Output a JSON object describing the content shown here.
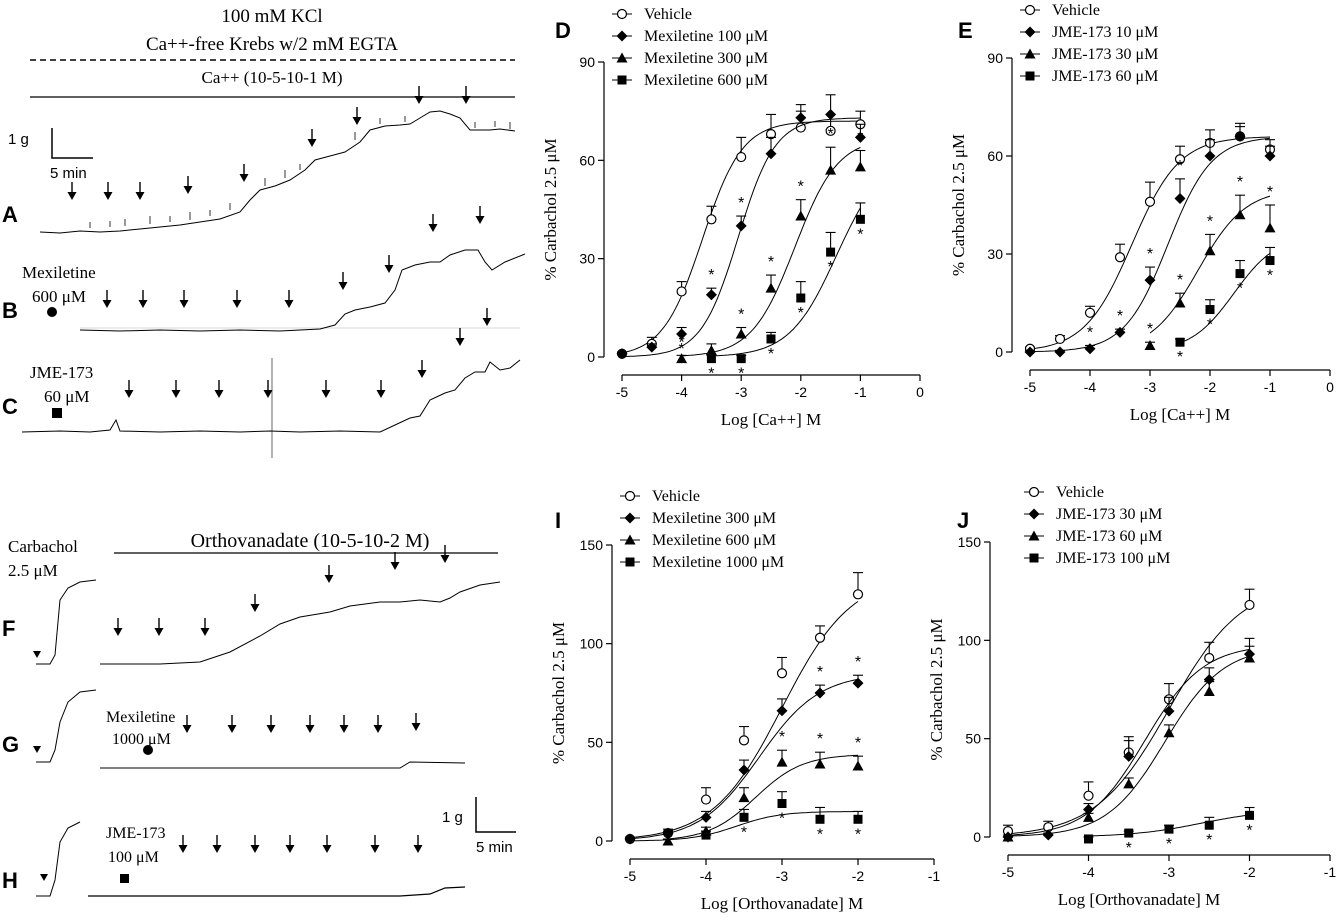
{
  "colors": {
    "ink": "#000000",
    "background": "#ffffff"
  },
  "traces": {
    "top_title_line1": "100 mM KCl",
    "top_title_line2": "Ca++-free Krebs w/2 mM EGTA",
    "top_range_label": "Ca++ (10-5-10-1 M)",
    "panel_labels": [
      "A",
      "B",
      "C",
      "F",
      "G",
      "H"
    ],
    "mexiletine_B": "Mexiletine",
    "mexiletine_B_dose": "600 μM",
    "jme_C": "JME-173",
    "jme_C_dose": "60 μM",
    "scale_g": "1 g",
    "scale_min": "5 min",
    "carbachol": "Carbachol",
    "carbachol_dose": "2.5 μM",
    "ortho_range_label": "Orthovanadate (10-5-10-2 M)",
    "mexiletine_G": "Mexiletine",
    "mexiletine_G_dose": "1000 μM",
    "jme_H": "JME-173",
    "jme_H_dose": "100 μM",
    "scale2_g": "1 g",
    "scale2_min": "5 min"
  },
  "chart_data": [
    {
      "id": "D",
      "type": "scatter",
      "panel_label": "D",
      "xlabel": "Log [Ca++] M",
      "ylabel": "% Carbachol 2.5 μM",
      "xlim": [
        -5,
        0
      ],
      "ylim": [
        0,
        90
      ],
      "xticks": [
        -5,
        -4,
        -3,
        -2,
        -1,
        0
      ],
      "yticks": [
        0,
        30,
        60,
        90
      ],
      "xtick_labels": [
        "-5",
        "-4",
        "-3",
        "-2",
        "-1",
        "0"
      ],
      "ytick_labels": [
        "0",
        "30",
        "60",
        "90"
      ],
      "legend": "top-left",
      "series": [
        {
          "name": "Vehicle",
          "marker": "circle-open",
          "x": [
            -5,
            -4.5,
            -4,
            -3.5,
            -3,
            -2.5,
            -2,
            -1.5,
            -1
          ],
          "y": [
            1,
            4,
            20,
            42,
            61,
            68,
            70,
            69,
            71
          ],
          "err": [
            0.5,
            2,
            3,
            4,
            6,
            6,
            5,
            5,
            4
          ],
          "fit": {
            "bottom": 0,
            "top": 72,
            "ec50": -3.65,
            "hill": 1.3,
            "from": -5,
            "to": -1
          },
          "stars": []
        },
        {
          "name": "Mexiletine 100 μM",
          "marker": "diamond",
          "x": [
            -5,
            -4.5,
            -4,
            -3.5,
            -3,
            -2.5,
            -2,
            -1.5,
            -1
          ],
          "y": [
            1,
            3,
            7,
            19,
            40,
            62,
            73,
            74,
            67
          ],
          "err": [
            0.5,
            1,
            2,
            2,
            3,
            5,
            4,
            6,
            4
          ],
          "fit": {
            "bottom": 0,
            "top": 73,
            "ec50": -3.05,
            "hill": 1.4,
            "from": -5,
            "to": -1
          },
          "stars": [
            {
              "x": -4,
              "side": "below"
            },
            {
              "x": -3.5,
              "side": "above"
            },
            {
              "x": -3,
              "side": "above"
            }
          ]
        },
        {
          "name": "Mexiletine 300 μM",
          "marker": "triangle",
          "x": [
            -4,
            -3.5,
            -3,
            -2.5,
            -2,
            -1.5,
            -1
          ],
          "y": [
            -0.5,
            2,
            7,
            21,
            43,
            57,
            58
          ],
          "err": [
            1,
            2,
            2,
            4,
            5,
            7,
            5
          ],
          "fit": {
            "bottom": 0,
            "top": 67,
            "ec50": -2.1,
            "hill": 1.2,
            "from": -4,
            "to": -1
          },
          "stars": [
            {
              "x": -4,
              "side": "above"
            },
            {
              "x": -3,
              "side": "above"
            },
            {
              "x": -2.5,
              "side": "above"
            },
            {
              "x": -2,
              "side": "above"
            },
            {
              "x": -1.5,
              "side": "above"
            },
            {
              "x": -1,
              "side": "above"
            }
          ]
        },
        {
          "name": "Mexiletine 600 μM",
          "marker": "square",
          "x": [
            -3.5,
            -3,
            -2.5,
            -2,
            -1.5,
            -1
          ],
          "y": [
            -0.5,
            -0.5,
            5.5,
            18,
            32,
            42
          ],
          "err": [
            1,
            1,
            2,
            5,
            6,
            5
          ],
          "fit": {
            "bottom": 0,
            "top": 62,
            "ec50": -1.4,
            "hill": 1.1,
            "from": -3.5,
            "to": -1
          },
          "stars": [
            {
              "x": -3.5,
              "side": "below"
            },
            {
              "x": -3,
              "side": "below"
            },
            {
              "x": -2.5,
              "side": "below"
            },
            {
              "x": -2,
              "side": "below"
            },
            {
              "x": -1.5,
              "side": "below"
            },
            {
              "x": -1,
              "side": "below"
            }
          ]
        }
      ]
    },
    {
      "id": "E",
      "type": "scatter",
      "panel_label": "E",
      "xlabel": "Log [Ca++] M",
      "ylabel": "% Carbachol 2.5 μM",
      "xlim": [
        -5,
        0
      ],
      "ylim": [
        0,
        90
      ],
      "xticks": [
        -5,
        -4,
        -3,
        -2,
        -1,
        0
      ],
      "yticks": [
        0,
        30,
        60,
        90
      ],
      "xtick_labels": [
        "-5",
        "-4",
        "-3",
        "-2",
        "-1",
        "0"
      ],
      "ytick_labels": [
        "0",
        "30",
        "60",
        "90"
      ],
      "legend": "top-left",
      "series": [
        {
          "name": "Vehicle",
          "marker": "circle-open",
          "x": [
            -5,
            -4.5,
            -4,
            -3.5,
            -3,
            -2.5,
            -2,
            -1.5,
            -1
          ],
          "y": [
            1,
            4,
            12,
            29,
            46,
            59,
            64,
            66,
            62
          ],
          "err": [
            0.5,
            1,
            2,
            4,
            6,
            4,
            4,
            4,
            3
          ],
          "fit": {
            "bottom": 0,
            "top": 66,
            "ec50": -3.3,
            "hill": 1.1,
            "from": -5,
            "to": -1
          },
          "stars": []
        },
        {
          "name": "JME-173 10 μM",
          "marker": "diamond",
          "x": [
            -5,
            -4.5,
            -4,
            -3.5,
            -3,
            -2.5,
            -2,
            -1.5,
            -1
          ],
          "y": [
            0,
            0,
            1,
            6,
            22,
            47,
            60,
            66,
            60
          ],
          "err": [
            0.5,
            0.5,
            1,
            1,
            4,
            6,
            5,
            3,
            3
          ],
          "fit": {
            "bottom": 0,
            "top": 66,
            "ec50": -2.7,
            "hill": 1.2,
            "from": -5,
            "to": -1
          },
          "stars": [
            {
              "x": -4,
              "side": "above"
            },
            {
              "x": -3.5,
              "side": "above"
            },
            {
              "x": -3,
              "side": "above"
            },
            {
              "x": -2.5,
              "side": "above"
            }
          ]
        },
        {
          "name": "JME-173 30 μM",
          "marker": "triangle",
          "x": [
            -3,
            -2.5,
            -2,
            -1.5,
            -1
          ],
          "y": [
            2,
            15,
            31,
            42,
            38
          ],
          "err": [
            1,
            3,
            5,
            6,
            7
          ],
          "fit": {
            "bottom": 0,
            "top": 50,
            "ec50": -2.2,
            "hill": 1.1,
            "from": -3,
            "to": -1
          },
          "stars": [
            {
              "x": -3,
              "side": "above"
            },
            {
              "x": -2.5,
              "side": "above"
            },
            {
              "x": -2,
              "side": "above"
            },
            {
              "x": -1.5,
              "side": "above"
            },
            {
              "x": -1,
              "side": "above"
            }
          ]
        },
        {
          "name": "JME-173 60 μM",
          "marker": "square",
          "x": [
            -2.5,
            -2,
            -1.5,
            -1
          ],
          "y": [
            3,
            13,
            24,
            28
          ],
          "err": [
            1,
            3,
            4,
            4
          ],
          "fit": {
            "bottom": 0,
            "top": 36,
            "ec50": -1.6,
            "hill": 1.2,
            "from": -2.5,
            "to": -1
          },
          "stars": [
            {
              "x": -2.5,
              "side": "below"
            },
            {
              "x": -2,
              "side": "below"
            },
            {
              "x": -1.5,
              "side": "below"
            },
            {
              "x": -1,
              "side": "below"
            }
          ]
        }
      ]
    },
    {
      "id": "I",
      "type": "scatter",
      "panel_label": "I",
      "xlabel": "Log [Orthovanadate] M",
      "ylabel": "% Carbachol 2.5 μM",
      "xlim": [
        -5,
        -1
      ],
      "ylim": [
        0,
        150
      ],
      "xticks": [
        -5,
        -4,
        -3,
        -2,
        -1
      ],
      "yticks": [
        0,
        50,
        100,
        150
      ],
      "xtick_labels": [
        "-5",
        "-4",
        "-3",
        "-2",
        "-1"
      ],
      "ytick_labels": [
        "0",
        "50",
        "100",
        "150"
      ],
      "legend": "top-left",
      "series": [
        {
          "name": "Vehicle",
          "marker": "circle-open",
          "x": [
            -5,
            -4.5,
            -4,
            -3.5,
            -3,
            -2.5,
            -2
          ],
          "y": [
            1,
            4,
            21,
            51,
            85,
            103,
            125
          ],
          "err": [
            1,
            2,
            6,
            7,
            8,
            6,
            11
          ],
          "fit": {
            "bottom": 0,
            "top": 135,
            "ec50": -3.0,
            "hill": 0.95,
            "from": -5,
            "to": -2
          },
          "stars": []
        },
        {
          "name": "Mexiletine 300 μM",
          "marker": "diamond",
          "x": [
            -5,
            -4.5,
            -4,
            -3.5,
            -3,
            -2.5,
            -2
          ],
          "y": [
            1,
            4,
            12,
            36,
            66,
            75,
            80
          ],
          "err": [
            1,
            1,
            3,
            5,
            6,
            4,
            4
          ],
          "fit": {
            "bottom": 0,
            "top": 85,
            "ec50": -3.3,
            "hill": 1.1,
            "from": -5,
            "to": -2
          },
          "stars": [
            {
              "x": -2.5,
              "side": "above"
            },
            {
              "x": -2,
              "side": "above"
            }
          ]
        },
        {
          "name": "Mexiletine 600 μM",
          "marker": "triangle",
          "x": [
            -4.5,
            -4,
            -3.5,
            -3,
            -2.5,
            -2
          ],
          "y": [
            0,
            5,
            22,
            40,
            39,
            38
          ],
          "err": [
            1,
            2,
            5,
            6,
            6,
            5
          ],
          "fit": {
            "bottom": 0,
            "top": 44,
            "ec50": -3.35,
            "hill": 1.4,
            "from": -4.5,
            "to": -2
          },
          "stars": [
            {
              "x": -3,
              "side": "above"
            },
            {
              "x": -2.5,
              "side": "above"
            },
            {
              "x": -2,
              "side": "above"
            }
          ]
        },
        {
          "name": "Mexiletine 1000 μM",
          "marker": "square",
          "x": [
            -4,
            -3.5,
            -3,
            -2.5,
            -2
          ],
          "y": [
            3,
            12,
            19,
            11,
            11
          ],
          "err": [
            2,
            4,
            6,
            6,
            4
          ],
          "fit": {
            "bottom": 0,
            "top": 15,
            "ec50": -3.6,
            "hill": 1.5,
            "from": -5,
            "to": -2
          },
          "stars": [
            {
              "x": -3.5,
              "side": "below"
            },
            {
              "x": -3,
              "side": "below"
            },
            {
              "x": -2.5,
              "side": "below"
            },
            {
              "x": -2,
              "side": "below"
            }
          ]
        }
      ]
    },
    {
      "id": "J",
      "type": "scatter",
      "panel_label": "J",
      "xlabel": "Log [Orthovanadate] M",
      "ylabel": "% Carbachol 2.5 μM",
      "xlim": [
        -5,
        -1
      ],
      "ylim": [
        0,
        150
      ],
      "xticks": [
        -5,
        -4,
        -3,
        -2,
        -1
      ],
      "yticks": [
        0,
        50,
        100,
        150
      ],
      "xtick_labels": [
        "-5",
        "-4",
        "-3",
        "-2",
        "-1"
      ],
      "ytick_labels": [
        "0",
        "50",
        "100",
        "150"
      ],
      "legend": "top-left",
      "series": [
        {
          "name": "Vehicle",
          "marker": "circle-open",
          "x": [
            -5,
            -4.5,
            -4,
            -3.5,
            -3,
            -2.5,
            -2
          ],
          "y": [
            3,
            5,
            21,
            43,
            70,
            91,
            118
          ],
          "err": [
            3,
            3,
            7,
            8,
            8,
            8,
            8
          ],
          "fit": {
            "bottom": 0,
            "top": 130,
            "ec50": -3.0,
            "hill": 0.95,
            "from": -5,
            "to": -2
          },
          "stars": []
        },
        {
          "name": "JME-173 30 μM",
          "marker": "diamond",
          "x": [
            -5,
            -4.5,
            -4,
            -3.5,
            -3,
            -2.5,
            -2
          ],
          "y": [
            0,
            1,
            14,
            41,
            64,
            80,
            93
          ],
          "err": [
            1,
            1,
            3,
            8,
            7,
            6,
            8
          ],
          "fit": {
            "bottom": 0,
            "top": 98,
            "ec50": -3.3,
            "hill": 1.2,
            "from": -5,
            "to": -2
          },
          "stars": []
        },
        {
          "name": "JME-173 60 μM",
          "marker": "triangle",
          "x": [
            -5,
            -4,
            -3.5,
            -3,
            -2.5,
            -2
          ],
          "y": [
            0,
            10,
            27,
            53,
            74,
            91
          ],
          "err": [
            1,
            2,
            3,
            4,
            5,
            6
          ],
          "fit": {
            "bottom": 0,
            "top": 97,
            "ec50": -3.05,
            "hill": 1.2,
            "from": -5,
            "to": -2
          },
          "stars": []
        },
        {
          "name": "JME-173 100 μM",
          "marker": "square",
          "x": [
            -4,
            -3.5,
            -3,
            -2.5,
            -2
          ],
          "y": [
            -1,
            2,
            4,
            6,
            11
          ],
          "err": [
            1,
            1,
            2,
            4,
            4
          ],
          "fit": {
            "bottom": 0,
            "top": 14,
            "ec50": -2.6,
            "hill": 1.0,
            "from": -4,
            "to": -2
          },
          "stars": [
            {
              "x": -3.5,
              "side": "below"
            },
            {
              "x": -3,
              "side": "below"
            },
            {
              "x": -2.5,
              "side": "below"
            },
            {
              "x": -2,
              "side": "below"
            }
          ]
        }
      ]
    }
  ]
}
